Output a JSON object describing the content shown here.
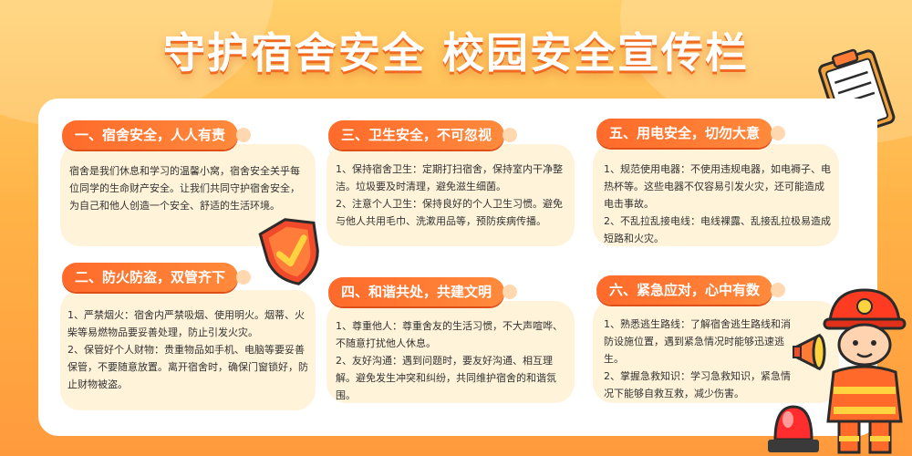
{
  "page_title": "守护宿舍安全 校园安全宣传栏",
  "sections": [
    {
      "heading": "一、宿舍安全，人人有责",
      "text": "宿舍是我们休息和学习的温馨小窝，宿舍安全关乎每位同学的生命财产安全。让我们共同守护宿舍安全，为自己和他人创造一个安全、舒适的生活环境。"
    },
    {
      "heading": "二、防火防盗，双管齐下",
      "text": "1、严禁烟火：宿舍内严禁吸烟、使用明火。烟蒂、火柴等易燃物品要妥善处理，防止引发火灾。\n2、保管好个人财物：贵重物品如手机、电脑等要妥善保管，不要随意放置。离开宿舍时，确保门窗锁好，防止财物被盗。"
    },
    {
      "heading": "三、卫生安全，不可忽视",
      "text": "1、保持宿舍卫生：定期打扫宿舍，保持室内干净整洁。垃圾要及时清理，避免滋生细菌。\n2、注意个人卫生：保持良好的个人卫生习惯。避免与他人共用毛巾、洗漱用品等，预防疾病传播。"
    },
    {
      "heading": "四、和谐共处，共建文明",
      "text": "1、尊重他人：尊重舍友的生活习惯，不大声喧哗、不随意打扰他人休息。\n2、友好沟通：遇到问题时，要友好沟通、相互理解。避免发生冲突和纠纷，共同维护宿舍的和谐氛围。"
    },
    {
      "heading": "五、用电安全，切勿大意",
      "text": "1、规范使用电器：不使用违规电器，如电褥子、电热杯等。这些电器不仅容易引发火灾，还可能造成电击事故。\n2、不乱拉乱接电线：电线裸露、乱接乱拉极易造成短路和火灾。"
    },
    {
      "heading": "六、紧急应对，心中有数",
      "text": "1、熟悉逃生路线：了解宿舍逃生路线和消防设施位置，遇到紧急情况时能够迅速逃生。\n2、掌握急救知识：学习急救知识，紧急情况下能够自救互救，减少伤害。"
    }
  ],
  "decorations": [
    "clipboard-icon",
    "shield-check-icon",
    "firefighter-illustration",
    "megaphone-icon",
    "alarm-light-icon"
  ],
  "colors": {
    "accent": "#ff6a2a",
    "card": "#fff3d9",
    "background": "#ffb347"
  }
}
